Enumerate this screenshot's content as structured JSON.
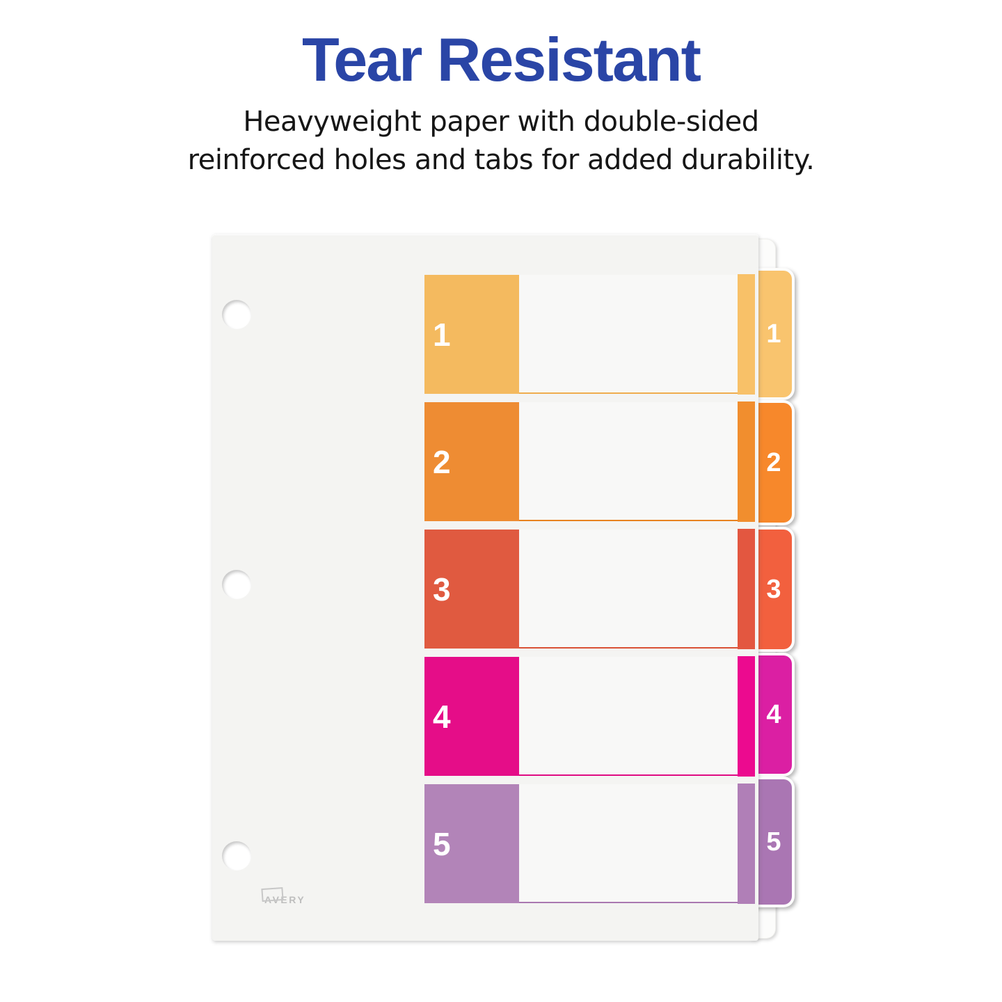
{
  "header": {
    "title": "Tear Resistant",
    "title_color": "#2A45A6",
    "subtitle_line1": "Heavyweight paper with double-sided",
    "subtitle_line2": "reinforced holes and tabs for added durability."
  },
  "divider": {
    "brand": "AVERY",
    "sheet_color": "#F4F4F2",
    "rows": [
      {
        "label": "1",
        "block_color": "#F4BA5F",
        "strip_color": "#F8C168",
        "tab_color": "#F9C46E",
        "line_color": "#EFAC4D"
      },
      {
        "label": "2",
        "block_color": "#EE8C33",
        "strip_color": "#F18E2E",
        "tab_color": "#F7882B",
        "line_color": "#E8821F"
      },
      {
        "label": "3",
        "block_color": "#E05A40",
        "strip_color": "#E35740",
        "tab_color": "#F2603E",
        "line_color": "#D95135"
      },
      {
        "label": "4",
        "block_color": "#E50D88",
        "strip_color": "#EC0A8F",
        "tab_color": "#DB1FA3",
        "line_color": "#DF0A82"
      },
      {
        "label": "5",
        "block_color": "#B284B8",
        "strip_color": "#B07FB7",
        "tab_color": "#AA76B3",
        "line_color": "#A978B0"
      }
    ]
  }
}
